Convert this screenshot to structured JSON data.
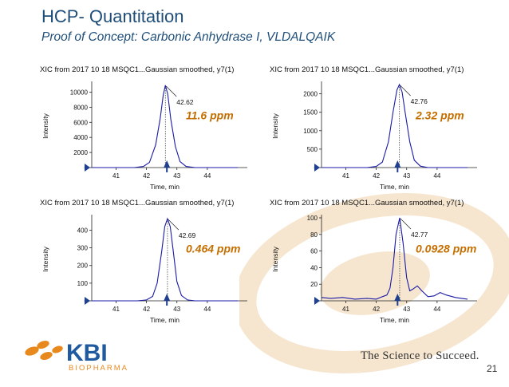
{
  "slide": {
    "title": "HCP- Quantitation",
    "subtitle": "Proof of Concept: Carbonic Anhydrase I, VLDALQAIK",
    "tagline": "The Science to Succeed.",
    "page_number": "21",
    "logo": {
      "main": "KBI",
      "sub": "BIOPHARMA"
    }
  },
  "colors": {
    "title": "#1f4e79",
    "trace": "#1a1aa6",
    "ppm": "#c56e00",
    "marker": "#1f3f8f",
    "logo_orange": "#e8891d",
    "logo_blue": "#1f5aa0",
    "watermark": "#f6e6cf"
  },
  "chart_data": [
    {
      "type": "line",
      "title": "XIC from 2017 10 18 MSQC1...Gaussian smoothed, y7(1)",
      "xlabel": "Time, min",
      "ylabel": "Intensity",
      "xlim": [
        40.2,
        45.0
      ],
      "ylim": [
        0,
        11000
      ],
      "xticks": [
        41,
        42,
        43,
        44
      ],
      "yticks": [
        0,
        2000,
        4000,
        6000,
        8000,
        10000
      ],
      "yticklabels": [
        "0",
        "2000",
        "4000",
        "6000",
        "8000",
        "10000"
      ],
      "peak": {
        "x": 42.62,
        "y": 10900,
        "label": "42.62"
      },
      "trace": {
        "x": [
          40.2,
          41.0,
          41.6,
          41.9,
          42.1,
          42.3,
          42.45,
          42.55,
          42.62,
          42.7,
          42.8,
          42.95,
          43.1,
          43.3,
          43.6,
          44.0,
          44.5,
          45.0
        ],
        "y": [
          0,
          0,
          0,
          150,
          700,
          3000,
          6500,
          9600,
          10900,
          9700,
          6400,
          2800,
          800,
          150,
          0,
          0,
          0,
          0
        ]
      },
      "marker_x": 42.67,
      "annotation": "11.6 ppm"
    },
    {
      "type": "line",
      "title": "XIC from 2017 10 18 MSQC1...Gaussian smoothed, y7(1)",
      "xlabel": "Time, min",
      "ylabel": "Intensity",
      "xlim": [
        40.2,
        45.0
      ],
      "ylim": [
        0,
        2250
      ],
      "xticks": [
        41,
        42,
        43,
        44
      ],
      "yticks": [
        0,
        500,
        1000,
        1500,
        2000
      ],
      "yticklabels": [
        "0",
        "500",
        "1000",
        "1500",
        "2000"
      ],
      "peak": {
        "x": 42.76,
        "y": 2250,
        "label": "42.76"
      },
      "trace": {
        "x": [
          40.2,
          41.0,
          41.7,
          42.0,
          42.2,
          42.4,
          42.55,
          42.68,
          42.76,
          42.85,
          42.95,
          43.1,
          43.25,
          43.45,
          43.7,
          44.0,
          44.5,
          45.0
        ],
        "y": [
          0,
          0,
          0,
          30,
          150,
          700,
          1500,
          2100,
          2250,
          2050,
          1500,
          700,
          200,
          40,
          0,
          0,
          0,
          0
        ]
      },
      "marker_x": 42.7,
      "annotation": "2.32 ppm"
    },
    {
      "type": "line",
      "title": "XIC from 2017 10 18 MSQC1...Gaussian smoothed, y7(1)",
      "xlabel": "Time, min",
      "ylabel": "Intensity",
      "xlim": [
        40.2,
        45.0
      ],
      "ylim": [
        0,
        470
      ],
      "xticks": [
        41,
        42,
        43,
        44
      ],
      "yticks": [
        0,
        100,
        200,
        300,
        400
      ],
      "yticklabels": [
        "0",
        "100",
        "200",
        "300",
        "400"
      ],
      "peak": {
        "x": 42.69,
        "y": 465,
        "label": "42.69"
      },
      "trace": {
        "x": [
          40.2,
          41.0,
          41.7,
          42.0,
          42.2,
          42.35,
          42.5,
          42.6,
          42.69,
          42.78,
          42.88,
          43.0,
          43.15,
          43.35,
          43.6,
          44.0,
          44.5,
          45.0
        ],
        "y": [
          0,
          0,
          0,
          5,
          25,
          100,
          280,
          420,
          465,
          420,
          280,
          110,
          30,
          5,
          0,
          0,
          0,
          0
        ]
      },
      "marker_x": 42.67,
      "annotation": "0.464 ppm"
    },
    {
      "type": "line",
      "title": "XIC from 2017 10 18 MSQC1...Gaussian smoothed, y7(1)",
      "xlabel": "Time, min",
      "ylabel": "Intensity",
      "xlim": [
        40.2,
        45.0
      ],
      "ylim": [
        0,
        100
      ],
      "xticks": [
        41,
        42,
        43,
        44
      ],
      "yticks": [
        0,
        20,
        40,
        60,
        80,
        100
      ],
      "yticklabels": [
        "0",
        "20",
        "40",
        "60",
        "80",
        "100"
      ],
      "peak": {
        "x": 42.77,
        "y": 100,
        "label": "42.77"
      },
      "trace": {
        "x": [
          40.2,
          40.5,
          40.9,
          41.3,
          41.7,
          42.0,
          42.2,
          42.35,
          42.45,
          42.55,
          42.65,
          42.77,
          42.88,
          43.0,
          43.1,
          43.2,
          43.35,
          43.5,
          43.7,
          43.9,
          44.1,
          44.3,
          44.6,
          44.8,
          45.0
        ],
        "y": [
          4,
          3,
          4,
          2,
          3,
          2,
          5,
          7,
          15,
          40,
          80,
          100,
          70,
          28,
          12,
          14,
          18,
          12,
          5,
          6,
          10,
          7,
          4,
          3,
          2
        ]
      },
      "marker_x": 42.7,
      "annotation": "0.0928 ppm"
    }
  ]
}
